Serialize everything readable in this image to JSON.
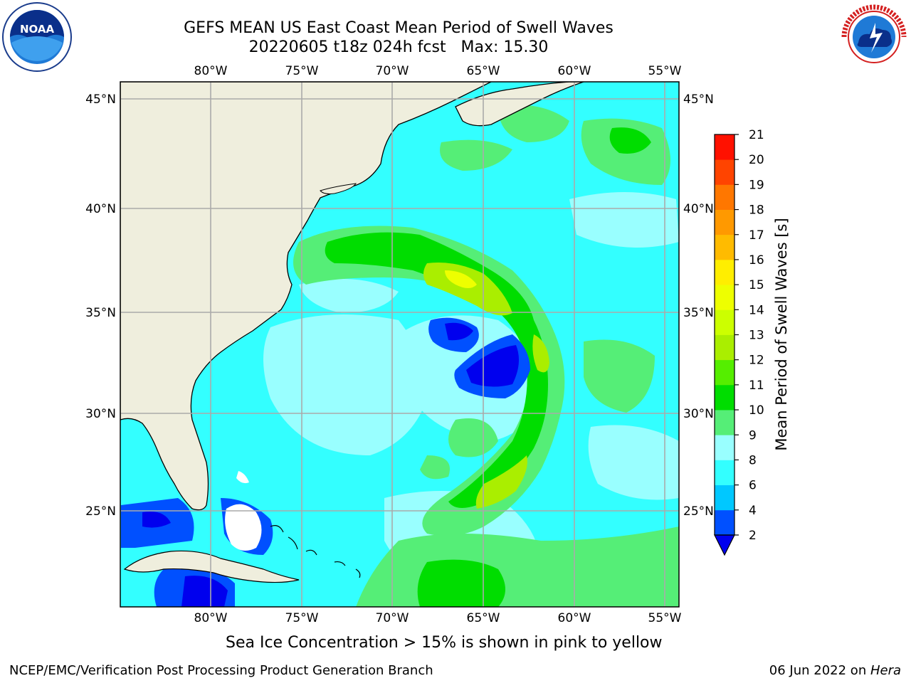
{
  "header": {
    "title_line1": "GEFS MEAN US East Coast Mean Period of Swell Waves",
    "title_line2": "20220605 t18z 024h fcst   Max: 15.30"
  },
  "logos": {
    "left": "noaa-logo",
    "left_text": "NOAA",
    "right": "nws-logo"
  },
  "map": {
    "lon_labels_top": [
      "80°W",
      "75°W",
      "70°W",
      "65°W",
      "60°W",
      "55°W"
    ],
    "lon_labels_bottom": [
      "80°W",
      "75°W",
      "70°W",
      "65°W",
      "60°W",
      "55°W"
    ],
    "lat_labels_left": [
      "45°N",
      "40°N",
      "35°N",
      "30°N",
      "25°N"
    ],
    "lat_labels_right": [
      "45°N",
      "40°N",
      "35°N",
      "30°N",
      "25°N"
    ],
    "land_color": "#efeedd",
    "grid_color": "#aaaaaa"
  },
  "colorbar": {
    "title": "Mean Period of Swell Waves [s]",
    "tick_labels": [
      "2",
      "4",
      "6",
      "8",
      "9",
      "10",
      "11",
      "12",
      "13",
      "14",
      "15",
      "16",
      "17",
      "18",
      "19",
      "20",
      "21"
    ],
    "colors": [
      "#0050ff",
      "#00c8ff",
      "#33ffff",
      "#99ffff",
      "#55ee77",
      "#00dd00",
      "#55ee00",
      "#aaee00",
      "#ccff00",
      "#eeff00",
      "#ffee00",
      "#ffbb00",
      "#ff9900",
      "#ff7700",
      "#ff4400",
      "#ff1100"
    ],
    "under_color": "#0000ee"
  },
  "notes": {
    "bottom": "Sea Ice Concentration > 15% is shown in pink to yellow",
    "footer_left": "NCEP/EMC/Verification Post Processing Product Generation Branch",
    "footer_right_date": "06 Jun 2022 on ",
    "footer_right_host": "Hera"
  }
}
